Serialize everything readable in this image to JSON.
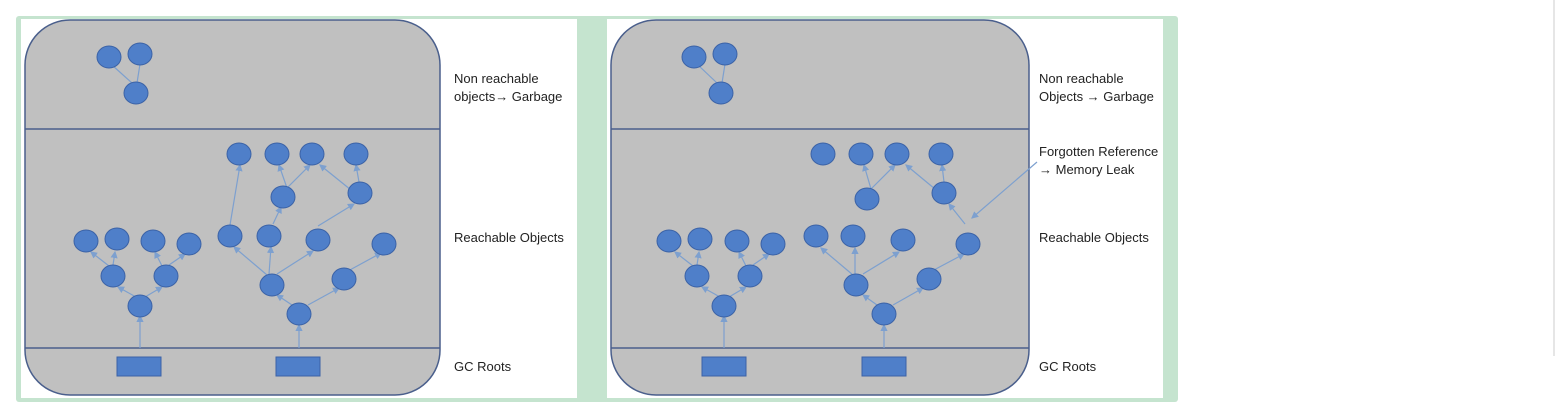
{
  "colors": {
    "frame": "#c5e4cf",
    "region": "#c0c0c0",
    "border": "#4a5f8c",
    "node": "#4f7fc9",
    "edge": "#7da0cf"
  },
  "panels": [
    {
      "id": "left",
      "labels": {
        "garbage": "Non reachable\nobjects→ Garbage",
        "reachable": "Reachable Objects",
        "roots": "GC Roots"
      }
    },
    {
      "id": "right",
      "labels": {
        "garbage": "Non reachable\nObjects → Garbage",
        "forgotten": "Forgotten Reference\n→ Memory Leak",
        "reachable": "Reachable Objects",
        "roots": "GC Roots"
      }
    }
  ]
}
